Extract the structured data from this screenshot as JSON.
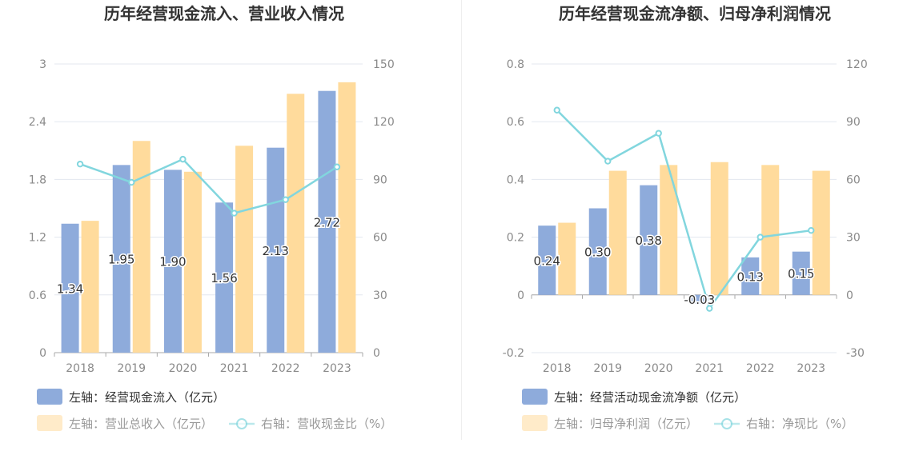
{
  "colors": {
    "bar_primary": "#8eabdb",
    "bar_secondary": "#ffdb9c",
    "line": "#82d6de",
    "grid": "#e3e7ef",
    "axis": "#aaaaaa",
    "legend_primary_text": "#333333",
    "legend_secondary_text": "#999999"
  },
  "chart_data": [
    {
      "type": "bar",
      "title": "历年经营现金流入、营业收入情况",
      "categories": [
        "2018",
        "2019",
        "2020",
        "2021",
        "2022",
        "2023"
      ],
      "left_axis": {
        "ylim": [
          0,
          3
        ],
        "ticks": [
          "0",
          "0.6",
          "1.2",
          "1.8",
          "2.4",
          "3"
        ]
      },
      "right_axis": {
        "ylim": [
          0,
          150
        ],
        "ticks": [
          "0",
          "30",
          "60",
          "90",
          "120",
          "150"
        ]
      },
      "series": [
        {
          "name": "左轴：经营现金流入（亿元）",
          "type": "bar",
          "axis": "left",
          "values": [
            1.34,
            1.95,
            1.9,
            1.56,
            2.13,
            2.72
          ],
          "labels": [
            "1.34",
            "1.95",
            "1.90",
            "1.56",
            "2.13",
            "2.72"
          ]
        },
        {
          "name": "左轴：营业总收入（亿元）",
          "type": "bar",
          "axis": "left",
          "values": [
            1.37,
            2.2,
            1.88,
            2.15,
            2.69,
            2.81
          ]
        },
        {
          "name": "右轴：营收现金比（%）",
          "type": "line",
          "axis": "right",
          "values": [
            98,
            88.5,
            100.5,
            72.5,
            79.5,
            96.5
          ]
        }
      ],
      "legend_position": "bottom-left",
      "grid": true
    },
    {
      "type": "bar",
      "title": "历年经营现金流净额、归母净利润情况",
      "categories": [
        "2018",
        "2019",
        "2020",
        "2021",
        "2022",
        "2023"
      ],
      "left_axis": {
        "ylim": [
          -0.2,
          0.8
        ],
        "ticks": [
          "-0.2",
          "0",
          "0.2",
          "0.4",
          "0.6",
          "0.8"
        ]
      },
      "right_axis": {
        "ylim": [
          -30,
          120
        ],
        "ticks": [
          "-30",
          "0",
          "30",
          "60",
          "90",
          "120"
        ]
      },
      "series": [
        {
          "name": "左轴：经营活动现金流净额（亿元）",
          "type": "bar",
          "axis": "left",
          "values": [
            0.24,
            0.3,
            0.38,
            -0.03,
            0.13,
            0.15
          ],
          "labels": [
            "0.24",
            "0.30",
            "0.38",
            "-0.03",
            "0.13",
            "0.15"
          ]
        },
        {
          "name": "左轴：归母净利润（亿元）",
          "type": "bar",
          "axis": "left",
          "values": [
            0.25,
            0.43,
            0.45,
            0.46,
            0.45,
            0.43
          ]
        },
        {
          "name": "右轴：净现比（%）",
          "type": "line",
          "axis": "right",
          "values": [
            96,
            69.5,
            84,
            -7,
            30,
            33.5
          ]
        }
      ],
      "legend_position": "bottom-left",
      "grid": true
    }
  ]
}
